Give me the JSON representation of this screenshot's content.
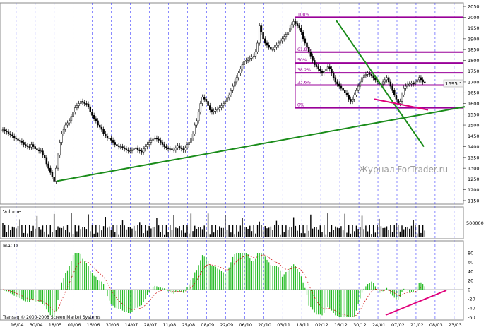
{
  "chart_data": {
    "type": "line",
    "subtype": "candlestick-with-volume-and-macd",
    "price_current_label": "1695.1",
    "x_tick_labels": [
      "16/04",
      "30/04",
      "18/05",
      "01/06",
      "16/06",
      "30/06",
      "14/07",
      "28/07",
      "11/08",
      "25/08",
      "08/09",
      "22/09",
      "06/10",
      "20/10",
      "03/11",
      "18/11",
      "02/12",
      "16/12",
      "30/12",
      "24/01",
      "07/02",
      "21/02",
      "08/03",
      "23/03"
    ],
    "price_axis": {
      "ticks": [
        1150,
        1200,
        1250,
        1300,
        1350,
        1400,
        1450,
        1500,
        1550,
        1600,
        1650,
        1700,
        1750,
        1800,
        1850,
        1900,
        1950,
        2000,
        2050
      ],
      "ylim": [
        1140,
        2060
      ]
    },
    "fib_levels": [
      {
        "label": "100%",
        "value": 2000
      },
      {
        "label": "61.8%",
        "value": 1838
      },
      {
        "label": "50%",
        "value": 1788
      },
      {
        "label": "38.2%",
        "value": 1742
      },
      {
        "label": "23.6%",
        "value": 1685
      },
      {
        "label": "0%",
        "value": 1580
      }
    ],
    "volume_panel": {
      "label": "Volume",
      "tick": "500000"
    },
    "macd_panel": {
      "label": "MACD",
      "ticks": [
        80,
        60,
        40,
        20,
        0,
        -20,
        -40,
        -60
      ]
    },
    "watermark": "Журнал ForTrader.ru",
    "copyright": "Transaq © 2000-2008 Screen Market Systems",
    "close_series": [
      1478,
      1472,
      1468,
      1460,
      1455,
      1450,
      1440,
      1435,
      1430,
      1425,
      1420,
      1410,
      1405,
      1400,
      1398,
      1410,
      1400,
      1390,
      1385,
      1380,
      1380,
      1360,
      1350,
      1320,
      1300,
      1280,
      1260,
      1240,
      1300,
      1360,
      1420,
      1460,
      1480,
      1500,
      1510,
      1520,
      1540,
      1560,
      1580,
      1590,
      1600,
      1610,
      1605,
      1600,
      1598,
      1585,
      1560,
      1545,
      1530,
      1520,
      1500,
      1490,
      1480,
      1460,
      1450,
      1440,
      1440,
      1430,
      1420,
      1410,
      1405,
      1400,
      1400,
      1395,
      1390,
      1385,
      1380,
      1380,
      1385,
      1390,
      1395,
      1385,
      1380,
      1375,
      1390,
      1400,
      1410,
      1420,
      1430,
      1435,
      1440,
      1435,
      1430,
      1420,
      1410,
      1400,
      1395,
      1390,
      1390,
      1385,
      1385,
      1395,
      1405,
      1395,
      1390,
      1385,
      1395,
      1410,
      1420,
      1440,
      1460,
      1500,
      1520,
      1560,
      1600,
      1630,
      1620,
      1610,
      1590,
      1570,
      1560,
      1565,
      1570,
      1575,
      1580,
      1590,
      1600,
      1610,
      1625,
      1640,
      1660,
      1680,
      1700,
      1720,
      1740,
      1760,
      1780,
      1795,
      1800,
      1805,
      1810,
      1815,
      1820,
      1840,
      1880,
      1960,
      1930,
      1900,
      1880,
      1870,
      1860,
      1850,
      1850,
      1860,
      1870,
      1880,
      1890,
      1900,
      1910,
      1920,
      1930,
      1950,
      1965,
      1980,
      1970,
      1960,
      1950,
      1930,
      1900,
      1880,
      1860,
      1840,
      1820,
      1800,
      1780,
      1770,
      1760,
      1750,
      1740,
      1750,
      1760,
      1770,
      1760,
      1740,
      1720,
      1700,
      1690,
      1680,
      1670,
      1660,
      1650,
      1640,
      1620,
      1610,
      1620,
      1640,
      1660,
      1680,
      1700,
      1720,
      1730,
      1735,
      1740,
      1735,
      1730,
      1720,
      1710,
      1700,
      1690,
      1690,
      1700,
      1710,
      1720,
      1700,
      1680,
      1660,
      1640,
      1620,
      1600,
      1610,
      1640,
      1670,
      1680,
      1690,
      1690,
      1695,
      1690,
      1700,
      1710,
      1720,
      1710,
      1700,
      1695
    ]
  },
  "icons": [
    "cursor-crosshair-icon"
  ]
}
